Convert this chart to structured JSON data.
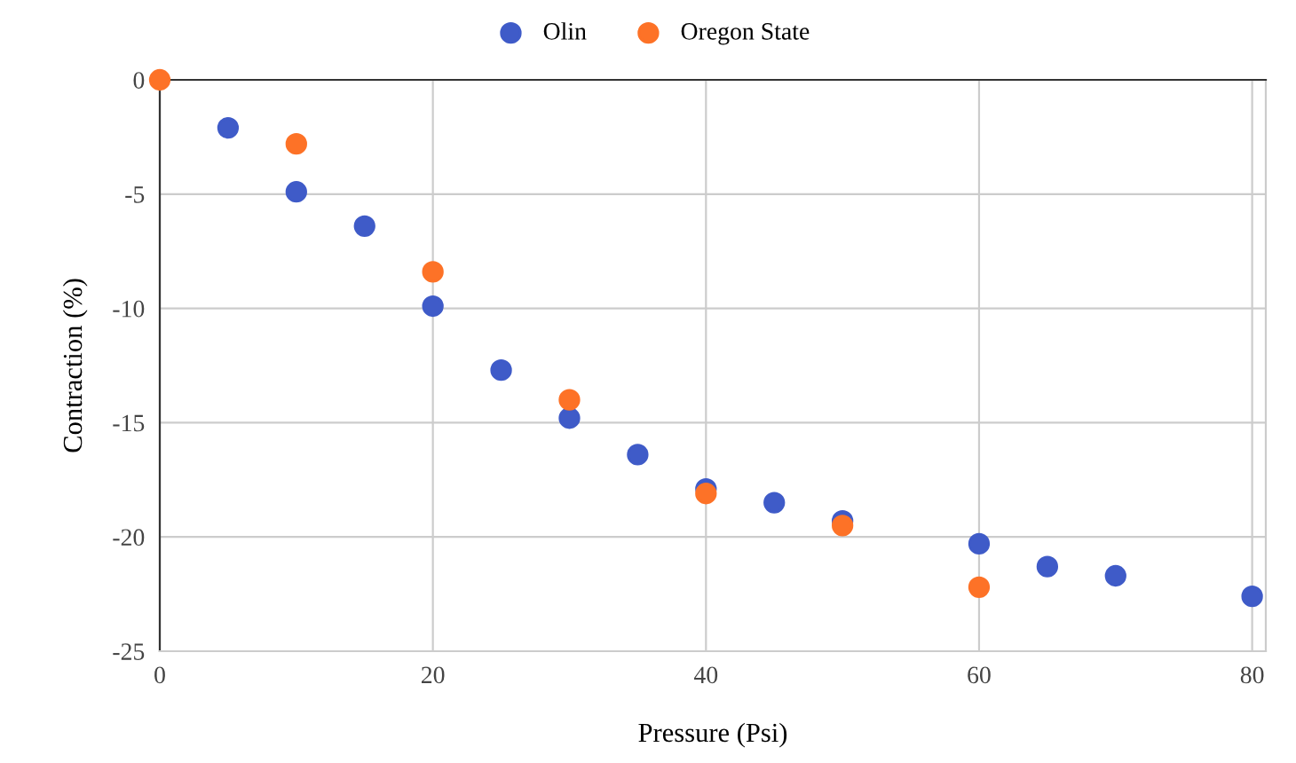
{
  "chart_data": {
    "type": "scatter",
    "xlabel": "Pressure (Psi)",
    "ylabel": "Contraction (%)",
    "series": [
      {
        "name": "Olin",
        "color": "#3f5bc8",
        "x": [
          5,
          10,
          15,
          20,
          25,
          30,
          35,
          40,
          45,
          50,
          60,
          65,
          70,
          80
        ],
        "values": [
          -2.1,
          -4.9,
          -6.4,
          -9.9,
          -12.7,
          -14.8,
          -16.4,
          -17.9,
          -18.5,
          -19.3,
          -20.3,
          -21.3,
          -21.7,
          -22.6
        ]
      },
      {
        "name": "Oregon State",
        "color": "#fd7227",
        "x": [
          0,
          10,
          20,
          30,
          40,
          50,
          60
        ],
        "values": [
          0,
          -2.8,
          -8.4,
          -14.0,
          -18.1,
          -19.5,
          -22.2
        ]
      }
    ],
    "xlim": [
      0,
      81
    ],
    "xticks": [
      0,
      20,
      40,
      60,
      80
    ],
    "ylim": [
      -25,
      0
    ],
    "yticks": [
      -25,
      -20,
      -15,
      -10,
      -5,
      0
    ],
    "grid": true,
    "legend": "top",
    "marker": "circle"
  }
}
